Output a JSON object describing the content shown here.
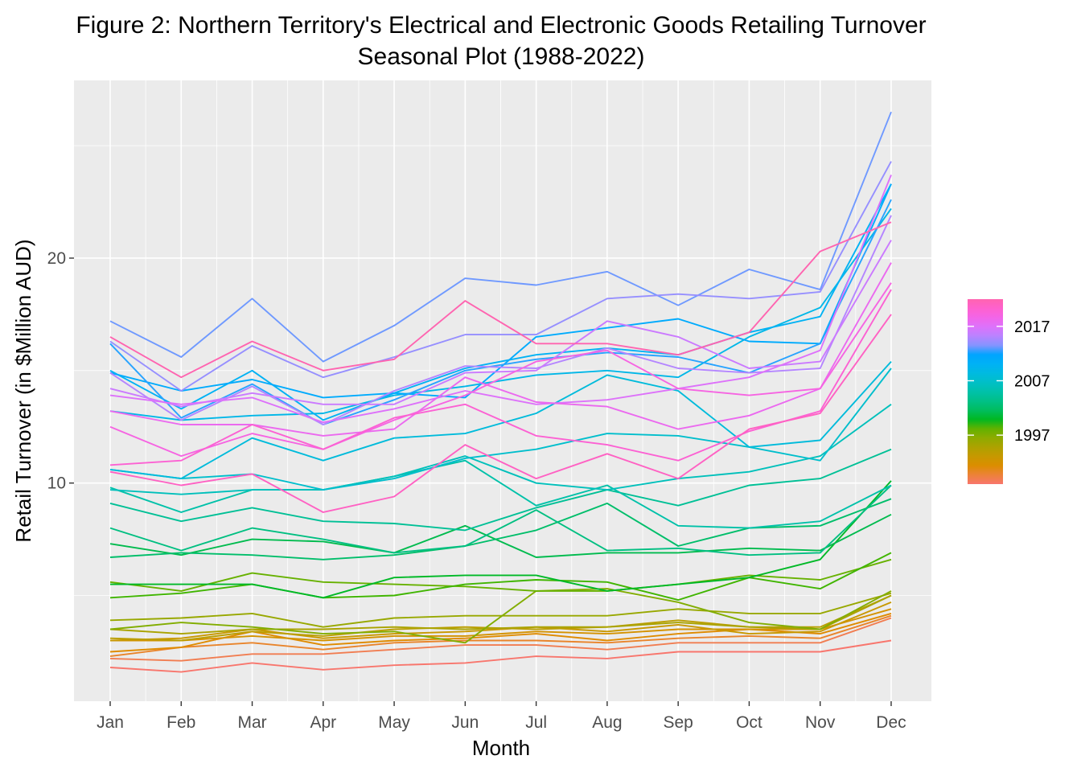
{
  "chart_data": {
    "type": "line",
    "title_lines": [
      "Figure 2: Northern Territory's Electrical and Electronic Goods Retailing Turnover",
      "Seasonal Plot (1988-2022)"
    ],
    "xlabel": "Month",
    "ylabel": "Retail Turnover (in $Million AUD)",
    "categories": [
      "Jan",
      "Feb",
      "Mar",
      "Apr",
      "May",
      "Jun",
      "Jul",
      "Aug",
      "Sep",
      "Oct",
      "Nov",
      "Dec"
    ],
    "y_ticks": [
      10,
      20
    ],
    "y_tick_labels": [
      "10",
      "20"
    ],
    "ylim": [
      0.3,
      27.9
    ],
    "grid": true,
    "legend": {
      "position": "right",
      "type": "colorbar",
      "range": [
        1988,
        2022
      ],
      "ticks": [
        1997,
        2007,
        2017
      ],
      "tick_labels": [
        "1997",
        "2007",
        "2017"
      ]
    },
    "series": [
      {
        "year": 1988,
        "values": [
          1.8,
          1.6,
          2.0,
          1.7,
          1.9,
          2.0,
          2.3,
          2.2,
          2.5,
          2.5,
          2.5,
          3.0
        ]
      },
      {
        "year": 1989,
        "values": [
          2.2,
          2.1,
          2.4,
          2.4,
          2.6,
          2.8,
          2.8,
          2.6,
          2.9,
          2.9,
          2.9,
          4.0
        ]
      },
      {
        "year": 1990,
        "values": [
          2.3,
          2.7,
          2.9,
          2.6,
          2.9,
          3.0,
          3.0,
          2.9,
          3.1,
          3.2,
          3.1,
          4.1
        ]
      },
      {
        "year": 1991,
        "values": [
          2.5,
          2.7,
          3.4,
          2.8,
          3.0,
          3.1,
          3.3,
          3.0,
          3.3,
          3.5,
          3.3,
          4.2
        ]
      },
      {
        "year": 1992,
        "values": [
          3.0,
          3.0,
          3.2,
          3.0,
          3.2,
          3.2,
          3.4,
          3.3,
          3.5,
          3.5,
          3.5,
          4.4
        ]
      },
      {
        "year": 1993,
        "values": [
          3.0,
          3.1,
          3.5,
          3.1,
          3.3,
          3.4,
          3.6,
          3.4,
          3.7,
          3.3,
          3.4,
          4.7
        ]
      },
      {
        "year": 1994,
        "values": [
          3.1,
          3.0,
          3.4,
          3.2,
          3.5,
          3.6,
          3.5,
          3.6,
          3.9,
          3.6,
          3.6,
          5.0
        ]
      },
      {
        "year": 1995,
        "values": [
          3.5,
          3.3,
          3.5,
          3.5,
          3.6,
          3.5,
          3.6,
          3.6,
          3.8,
          3.6,
          3.5,
          5.0
        ]
      },
      {
        "year": 1996,
        "values": [
          3.9,
          4.0,
          4.2,
          3.6,
          4.0,
          4.1,
          4.1,
          4.1,
          4.4,
          4.2,
          4.2,
          5.1
        ]
      },
      {
        "year": 1997,
        "values": [
          3.5,
          3.8,
          3.6,
          3.3,
          3.4,
          2.9,
          5.2,
          5.3,
          4.7,
          3.8,
          3.5,
          5.2
        ]
      },
      {
        "year": 1998,
        "values": [
          5.6,
          5.2,
          6.0,
          5.6,
          5.5,
          5.4,
          5.2,
          5.2,
          5.5,
          5.9,
          5.7,
          6.6
        ]
      },
      {
        "year": 1999,
        "values": [
          4.9,
          5.1,
          5.5,
          4.9,
          5.0,
          5.5,
          5.7,
          5.6,
          4.8,
          5.8,
          5.3,
          6.9
        ]
      },
      {
        "year": 2000,
        "values": [
          5.5,
          5.5,
          5.5,
          4.9,
          5.8,
          5.9,
          5.9,
          5.2,
          5.5,
          5.8,
          6.6,
          10.1
        ]
      },
      {
        "year": 2001,
        "values": [
          7.3,
          6.8,
          7.5,
          7.4,
          6.9,
          8.1,
          6.7,
          6.9,
          6.9,
          7.1,
          7.0,
          8.6
        ]
      },
      {
        "year": 2002,
        "values": [
          6.7,
          6.9,
          6.8,
          6.6,
          6.8,
          7.2,
          7.9,
          9.1,
          7.2,
          8.0,
          8.1,
          9.3
        ]
      },
      {
        "year": 2003,
        "values": [
          8.0,
          7.0,
          8.0,
          7.5,
          6.9,
          7.2,
          8.8,
          7.0,
          7.1,
          6.8,
          6.9,
          9.9
        ]
      },
      {
        "year": 2004,
        "values": [
          9.1,
          8.3,
          8.9,
          8.3,
          8.2,
          7.9,
          8.9,
          9.7,
          9.0,
          9.9,
          10.2,
          11.5
        ]
      },
      {
        "year": 2005,
        "values": [
          9.8,
          8.7,
          9.7,
          9.7,
          10.3,
          11.0,
          9.0,
          9.9,
          8.1,
          8.0,
          8.3,
          9.9
        ]
      },
      {
        "year": 2006,
        "values": [
          9.7,
          9.5,
          9.7,
          9.7,
          10.3,
          11.2,
          10.0,
          9.7,
          10.2,
          10.5,
          11.2,
          13.5
        ]
      },
      {
        "year": 2007,
        "values": [
          10.6,
          10.2,
          10.4,
          9.7,
          10.2,
          11.1,
          11.5,
          12.2,
          12.1,
          11.6,
          11.0,
          15.1
        ]
      },
      {
        "year": 2008,
        "values": [
          10.6,
          10.2,
          12.0,
          11.0,
          12.0,
          12.2,
          13.1,
          14.8,
          14.1,
          11.6,
          11.9,
          15.4
        ]
      },
      {
        "year": 2009,
        "values": [
          13.2,
          12.8,
          13.0,
          13.1,
          13.9,
          14.3,
          14.8,
          15.0,
          14.7,
          16.5,
          17.8,
          22.2
        ]
      },
      {
        "year": 2010,
        "values": [
          15.0,
          13.3,
          15.0,
          12.8,
          14.0,
          15.1,
          15.7,
          16.0,
          15.7,
          16.7,
          17.4,
          23.3
        ]
      },
      {
        "year": 2011,
        "values": [
          14.9,
          14.1,
          14.6,
          13.8,
          14.0,
          13.8,
          16.5,
          16.9,
          17.3,
          16.3,
          16.2,
          23.3
        ]
      },
      {
        "year": 2012,
        "values": [
          16.2,
          12.9,
          14.4,
          12.6,
          13.7,
          15.0,
          15.5,
          15.8,
          15.6,
          14.9,
          16.2,
          22.6
        ]
      },
      {
        "year": 2013,
        "values": [
          17.2,
          15.6,
          18.2,
          15.4,
          17.0,
          19.1,
          18.8,
          19.4,
          17.9,
          19.5,
          18.6,
          26.5
        ]
      },
      {
        "year": 2014,
        "values": [
          16.3,
          14.1,
          16.1,
          14.7,
          15.6,
          16.6,
          16.6,
          18.2,
          18.4,
          18.2,
          18.5,
          24.3
        ]
      },
      {
        "year": 2015,
        "values": [
          14.9,
          12.8,
          14.3,
          12.6,
          14.1,
          15.2,
          15.1,
          16.0,
          15.1,
          14.9,
          15.1,
          21.9
        ]
      },
      {
        "year": 2016,
        "values": [
          14.2,
          13.4,
          14.0,
          13.5,
          13.5,
          14.9,
          15.0,
          17.2,
          16.5,
          15.1,
          15.4,
          20.8
        ]
      },
      {
        "year": 2017,
        "values": [
          13.9,
          13.5,
          13.8,
          12.7,
          13.3,
          14.1,
          13.5,
          13.7,
          14.2,
          14.7,
          15.9,
          23.7
        ]
      },
      {
        "year": 2018,
        "values": [
          13.2,
          12.6,
          12.6,
          12.1,
          12.4,
          14.7,
          13.6,
          13.4,
          12.4,
          13.0,
          14.2,
          19.8
        ]
      },
      {
        "year": 2019,
        "values": [
          12.5,
          11.2,
          12.2,
          11.5,
          12.8,
          13.9,
          15.4,
          15.9,
          14.2,
          13.9,
          14.2,
          18.9
        ]
      },
      {
        "year": 2020,
        "values": [
          10.8,
          11.0,
          12.6,
          11.5,
          12.9,
          13.5,
          12.1,
          11.7,
          11.0,
          12.3,
          13.2,
          18.6
        ]
      },
      {
        "year": 2021,
        "values": [
          10.5,
          9.9,
          10.4,
          8.7,
          9.4,
          11.7,
          10.2,
          11.3,
          10.2,
          12.4,
          13.1,
          17.5
        ]
      },
      {
        "year": 2022,
        "values": [
          16.5,
          14.7,
          16.3,
          15.0,
          15.5,
          18.1,
          16.2,
          16.2,
          15.7,
          16.7,
          20.3,
          21.6
        ]
      }
    ]
  }
}
